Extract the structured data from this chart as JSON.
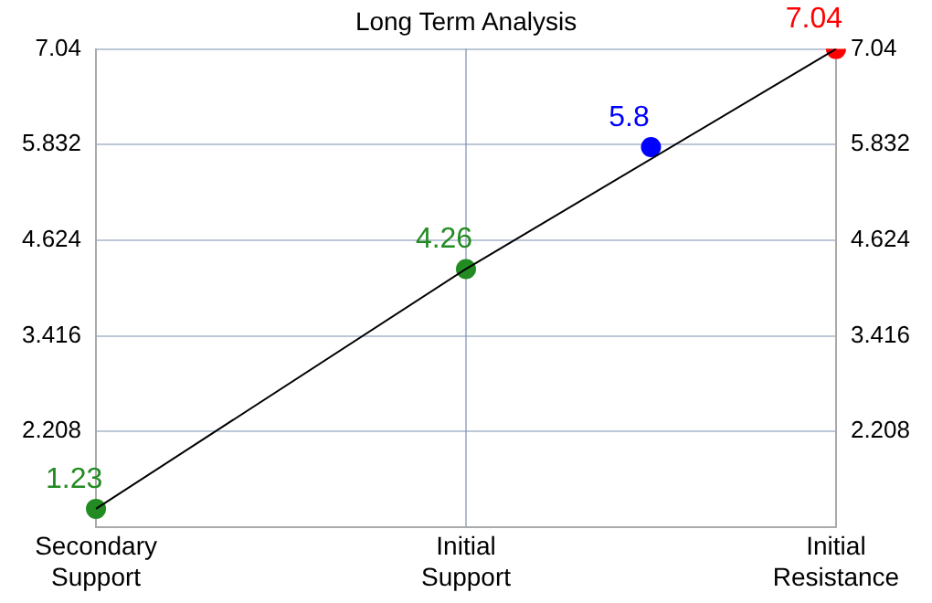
{
  "chart_data": {
    "type": "line",
    "title": "Long Term Analysis",
    "categories": [
      "Secondary Support",
      null,
      "Initial Support",
      null,
      "Initial Resistance"
    ],
    "ylim": [
      1,
      7.04
    ],
    "yticks": [
      2.208,
      3.416,
      4.624,
      5.832,
      7.04
    ],
    "y2lim": [
      1,
      7.04
    ],
    "y2ticks": [
      2.208,
      3.416,
      4.624,
      5.832,
      7.04
    ],
    "grid": true,
    "line_style": "solid",
    "series": [
      {
        "type": "line",
        "color": "#000000",
        "values": [
          1.23,
          null,
          4.26,
          null,
          7.04
        ],
        "marker": "none"
      },
      {
        "type": "scatter",
        "color": "#228b22",
        "values": [
          1.23,
          null,
          4.26,
          null,
          null
        ],
        "marker": "circle",
        "value_labels": [
          "1.23",
          null,
          "4.26",
          null,
          null
        ]
      },
      {
        "type": "scatter",
        "color": "#0000ff",
        "values": [
          null,
          null,
          null,
          5.8,
          null
        ],
        "marker": "circle",
        "value_labels": [
          null,
          null,
          null,
          "5.8",
          null
        ]
      },
      {
        "type": "scatter",
        "color": "#ff0000",
        "values": [
          null,
          null,
          null,
          null,
          7.04
        ],
        "marker": "circle",
        "value_labels": [
          null,
          null,
          null,
          null,
          "7.04"
        ]
      }
    ]
  }
}
